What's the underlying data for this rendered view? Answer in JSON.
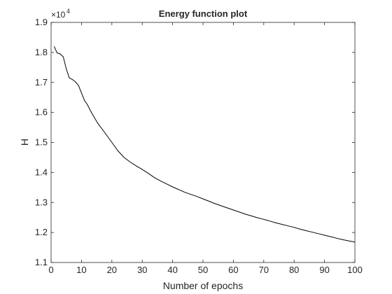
{
  "chart_data": {
    "type": "line",
    "title": "Energy function plot",
    "xlabel": "Number of epochs",
    "ylabel": "H",
    "y_exponent_label": "×10",
    "y_exponent_power": "4",
    "y_scale_factor": 10000,
    "xlim": [
      0,
      100
    ],
    "ylim": [
      11000,
      19000
    ],
    "x_ticks": [
      0,
      10,
      20,
      30,
      40,
      50,
      60,
      70,
      80,
      90,
      100
    ],
    "x_tick_labels": [
      "0",
      "10",
      "20",
      "30",
      "40",
      "50",
      "60",
      "70",
      "80",
      "90",
      "100"
    ],
    "y_ticks": [
      11000,
      12000,
      13000,
      14000,
      15000,
      16000,
      17000,
      18000,
      19000
    ],
    "y_tick_labels": [
      "1.1",
      "1.2",
      "1.3",
      "1.4",
      "1.5",
      "1.6",
      "1.7",
      "1.8",
      "1.9"
    ],
    "grid": false,
    "box": true,
    "series": [
      {
        "color": "#000000",
        "x": [
          1,
          2,
          3,
          4,
          5,
          6,
          7,
          8,
          9,
          10,
          11,
          12,
          13,
          14,
          15,
          16,
          17,
          18,
          19,
          20,
          22,
          24,
          26,
          28,
          30,
          32,
          34,
          36,
          38,
          40,
          42,
          44,
          46,
          48,
          50,
          52,
          54,
          56,
          58,
          60,
          62,
          64,
          66,
          68,
          70,
          72,
          74,
          76,
          78,
          80,
          82,
          84,
          86,
          88,
          90,
          92,
          94,
          96,
          98,
          100
        ],
        "y": [
          18200,
          17980,
          17950,
          17850,
          17450,
          17150,
          17100,
          17020,
          16900,
          16650,
          16400,
          16250,
          16050,
          15870,
          15700,
          15550,
          15420,
          15280,
          15140,
          15000,
          14720,
          14500,
          14350,
          14220,
          14100,
          13970,
          13830,
          13720,
          13620,
          13520,
          13430,
          13340,
          13270,
          13200,
          13120,
          13040,
          12960,
          12890,
          12820,
          12750,
          12680,
          12610,
          12550,
          12490,
          12440,
          12380,
          12320,
          12270,
          12220,
          12170,
          12110,
          12060,
          12010,
          11960,
          11910,
          11860,
          11810,
          11760,
          11720,
          11680
        ]
      }
    ]
  }
}
